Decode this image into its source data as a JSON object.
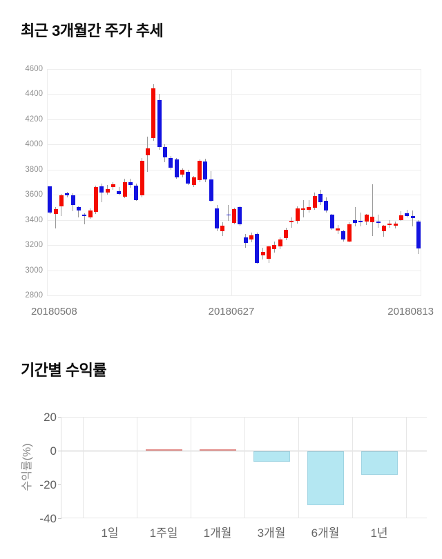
{
  "chart_data": [
    {
      "type": "candlestick",
      "title": "최근 3개월간 주가 추세",
      "x_tick_labels": [
        "20180508",
        "20180627",
        "20180813"
      ],
      "y_ticks": [
        4600,
        4400,
        4200,
        4000,
        3800,
        3600,
        3400,
        3200,
        3000,
        2800
      ],
      "ylim": [
        2800,
        4600
      ],
      "grid": true,
      "legend_position": "none",
      "colors": {
        "up": "#f40b00",
        "down": "#1212e0",
        "wick": "#9a9a9a",
        "gridline": "#ededed"
      },
      "candles_ohlc": [
        [
          3665,
          3670,
          3450,
          3460
        ],
        [
          3450,
          3500,
          3330,
          3485
        ],
        [
          3510,
          3605,
          3430,
          3595
        ],
        [
          3610,
          3625,
          3580,
          3595
        ],
        [
          3595,
          3610,
          3470,
          3520
        ],
        [
          3500,
          3510,
          3420,
          3475
        ],
        [
          3445,
          3455,
          3365,
          3430
        ],
        [
          3420,
          3490,
          3410,
          3475
        ],
        [
          3465,
          3675,
          3450,
          3660
        ],
        [
          3665,
          3690,
          3540,
          3620
        ],
        [
          3620,
          3680,
          3600,
          3645
        ],
        [
          3660,
          3700,
          3640,
          3685
        ],
        [
          3630,
          3660,
          3595,
          3605
        ],
        [
          3585,
          3730,
          3575,
          3700
        ],
        [
          3700,
          3730,
          3655,
          3680
        ],
        [
          3675,
          3690,
          3550,
          3560
        ],
        [
          3595,
          3890,
          3580,
          3870
        ],
        [
          3915,
          4060,
          3780,
          3970
        ],
        [
          4050,
          4480,
          4030,
          4445
        ],
        [
          4355,
          4400,
          3960,
          3980
        ],
        [
          3980,
          4000,
          3860,
          3900
        ],
        [
          3895,
          3910,
          3800,
          3815
        ],
        [
          3880,
          3895,
          3730,
          3740
        ],
        [
          3760,
          3810,
          3740,
          3800
        ],
        [
          3780,
          3800,
          3680,
          3690
        ],
        [
          3680,
          3750,
          3660,
          3740
        ],
        [
          3715,
          3880,
          3700,
          3870
        ],
        [
          3865,
          3885,
          3700,
          3720
        ],
        [
          3720,
          3790,
          3540,
          3550
        ],
        [
          3490,
          3520,
          3310,
          3330
        ],
        [
          3310,
          3380,
          3270,
          3355
        ],
        [
          3445,
          3520,
          3390,
          3440
        ],
        [
          3375,
          3495,
          3365,
          3485
        ],
        [
          3500,
          3510,
          3355,
          3365
        ],
        [
          3260,
          3290,
          3180,
          3215
        ],
        [
          3245,
          3300,
          3220,
          3280
        ],
        [
          3290,
          3300,
          3050,
          3055
        ],
        [
          3120,
          3180,
          3085,
          3145
        ],
        [
          3090,
          3195,
          3060,
          3190
        ],
        [
          3165,
          3230,
          3140,
          3200
        ],
        [
          3190,
          3260,
          3170,
          3245
        ],
        [
          3255,
          3340,
          3240,
          3320
        ],
        [
          3380,
          3420,
          3340,
          3395
        ],
        [
          3390,
          3510,
          3370,
          3490
        ],
        [
          3485,
          3560,
          3420,
          3490
        ],
        [
          3480,
          3560,
          3460,
          3505
        ],
        [
          3495,
          3620,
          3480,
          3590
        ],
        [
          3605,
          3640,
          3520,
          3540
        ],
        [
          3550,
          3580,
          3460,
          3475
        ],
        [
          3440,
          3450,
          3320,
          3330
        ],
        [
          3315,
          3360,
          3290,
          3335
        ],
        [
          3310,
          3320,
          3230,
          3245
        ],
        [
          3230,
          3380,
          3220,
          3365
        ],
        [
          3400,
          3500,
          3350,
          3375
        ],
        [
          3395,
          3460,
          3350,
          3380
        ],
        [
          3385,
          3450,
          3360,
          3440
        ],
        [
          3380,
          3685,
          3270,
          3425
        ],
        [
          3390,
          3440,
          3340,
          3375
        ],
        [
          3310,
          3360,
          3265,
          3355
        ],
        [
          3365,
          3400,
          3340,
          3370
        ],
        [
          3355,
          3390,
          3330,
          3370
        ],
        [
          3400,
          3470,
          3390,
          3435
        ],
        [
          3455,
          3480,
          3420,
          3430
        ],
        [
          3430,
          3476,
          3348,
          3412
        ],
        [
          3390,
          3400,
          3128,
          3173
        ]
      ]
    },
    {
      "type": "bar",
      "title": "기간별 수익률",
      "ylabel": "수익률(%)",
      "categories": [
        "1일",
        "1주일",
        "1개월",
        "3개월",
        "6개월",
        "1년"
      ],
      "values": [
        0.0,
        0.3,
        0.3,
        -6.0,
        -32.0,
        -14.0
      ],
      "y_ticks": [
        20,
        0,
        -20,
        -40
      ],
      "ylim": [
        -40,
        20
      ],
      "grid": true,
      "legend_position": "none",
      "colors": {
        "positive_fill": "#f3bdba",
        "positive_border": "#e5928e",
        "negative_fill": "#b4e7f2",
        "negative_border": "#9fd4e2",
        "zero_line": "#bcbcbc",
        "gridline": "#e6e6e6"
      }
    }
  ]
}
